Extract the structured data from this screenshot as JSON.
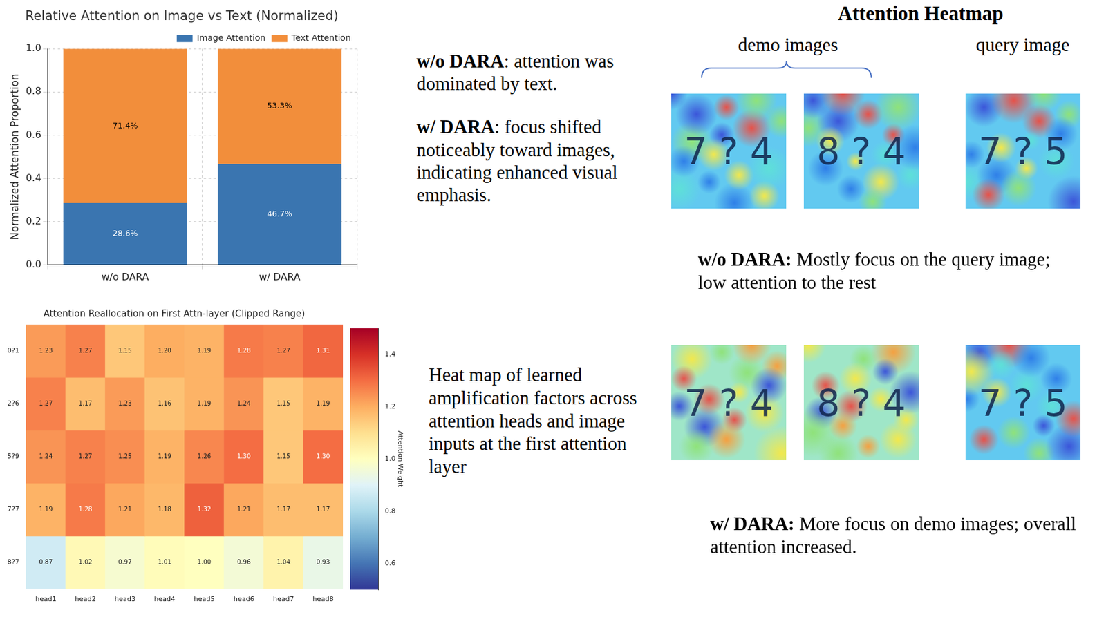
{
  "chart_data": [
    {
      "type": "bar",
      "title": "Relative Attention on Image vs Text (Normalized)",
      "y_label": "Normalized Attention Proportion",
      "categories": [
        "w/o DARA",
        "w/ DARA"
      ],
      "series": [
        {
          "name": "Image Attention",
          "color": "#3a75b0",
          "values": [
            0.286,
            0.467
          ],
          "value_labels": [
            "28.6%",
            "46.7%"
          ]
        },
        {
          "name": "Text Attention",
          "color": "#f28e3b",
          "values": [
            0.714,
            0.533
          ],
          "value_labels": [
            "71.4%",
            "53.3%"
          ]
        }
      ],
      "stacked": true,
      "ylim": [
        0,
        1
      ],
      "yticks": [
        {
          "value": 0,
          "label": "0.0"
        },
        0.2,
        0.4,
        0.6,
        0.8,
        {
          "value": 1,
          "label": "1.0"
        }
      ],
      "grid": true,
      "legend": "top",
      "data_labels": true
    },
    {
      "type": "heatmap",
      "title": "Attention Reallocation on First Attn-layer (Clipped Range)",
      "rows": [
        "0?1",
        "2?6",
        "5?9",
        "7?7",
        "8?7"
      ],
      "columns": [
        "head1",
        "head2",
        "head3",
        "head4",
        "head5",
        "head6",
        "head7",
        "head8"
      ],
      "values": [
        [
          1.23,
          1.27,
          1.15,
          1.2,
          1.19,
          1.28,
          1.27,
          1.31
        ],
        [
          1.27,
          1.17,
          1.23,
          1.16,
          1.19,
          1.24,
          1.15,
          1.19
        ],
        [
          1.24,
          1.27,
          1.25,
          1.19,
          1.26,
          1.3,
          1.15,
          1.3
        ],
        [
          1.19,
          1.28,
          1.21,
          1.18,
          1.32,
          1.21,
          1.17,
          1.17
        ],
        [
          0.87,
          1.02,
          0.97,
          1.01,
          1.0,
          0.96,
          1.04,
          0.93
        ]
      ],
      "value_labels": [
        [
          "1.23",
          "1.27",
          "1.15",
          "1.20",
          "1.19",
          "1.28",
          "1.27",
          "1.31"
        ],
        [
          "1.27",
          "1.17",
          "1.23",
          "1.16",
          "1.19",
          "1.24",
          "1.15",
          "1.19"
        ],
        [
          "1.24",
          "1.27",
          "1.25",
          "1.19",
          "1.26",
          "1.30",
          "1.15",
          "1.30"
        ],
        [
          "1.19",
          "1.28",
          "1.21",
          "1.18",
          "1.32",
          "1.21",
          "1.17",
          "1.17"
        ],
        [
          "0.87",
          "1.02",
          "0.97",
          "1.01",
          "1.00",
          "0.96",
          "1.04",
          "0.93"
        ]
      ],
      "data_labels": true,
      "colorbar": {
        "label": "Attention Weight",
        "range": [
          0.5,
          1.5
        ],
        "ticks": [
          0.6,
          0.8,
          {
            "value": 1,
            "label": "1.0"
          },
          1.2,
          1.4
        ]
      }
    }
  ],
  "bar_notes": [
    {
      "bold": "w/o DARA",
      "text": ": attention was dominated by text."
    },
    {
      "bold": "w/ DARA",
      "text": ": focus shifted noticeably toward images, indicating enhanced visual emphasis."
    }
  ],
  "heatmap_note": "Heat map of learned amplification factors across attention heads and image inputs at the first attention layer",
  "attention_heatmap": {
    "title": "Attention Heatmap",
    "group_labels": [
      "demo images",
      "query image"
    ],
    "rows": [
      {
        "caption": {
          "bold": "w/o DARA:",
          "text": " Mostly focus on the query image; low attention to the rest"
        },
        "images": [
          "7 ? 4",
          "8 ? 4",
          "7 ? 5"
        ]
      },
      {
        "caption": {
          "bold": "w/ DARA:",
          "text": " More focus on demo images; overall attention increased."
        },
        "images": [
          "7 ? 4",
          "8 ? 4",
          "7 ? 5"
        ]
      }
    ]
  }
}
